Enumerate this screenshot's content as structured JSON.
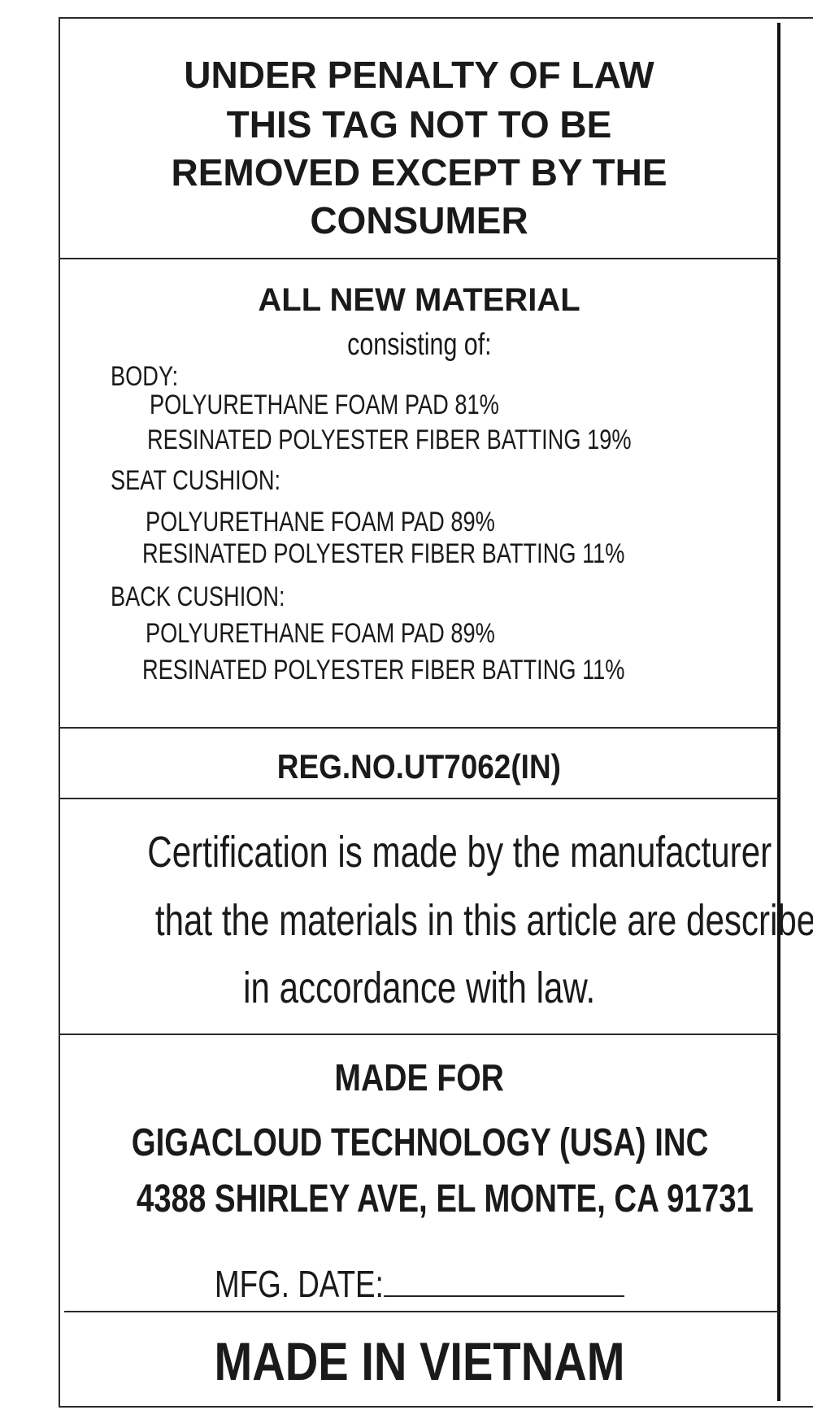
{
  "warning": {
    "lines": [
      "UNDER PENALTY OF LAW",
      "THIS TAG NOT TO BE",
      "REMOVED EXCEPT BY THE",
      "CONSUMER"
    ]
  },
  "material": {
    "heading": "ALL NEW MATERIAL",
    "subheading": "consisting of:",
    "sections": [
      {
        "label": "BODY:",
        "items": [
          "POLYURETHANE FOAM PAD 81%",
          "RESINATED POLYESTER FIBER BATTING 19%"
        ]
      },
      {
        "label": "SEAT CUSHION:",
        "items": [
          "POLYURETHANE FOAM PAD 89%",
          "RESINATED POLYESTER FIBER BATTING 11%"
        ]
      },
      {
        "label": "BACK CUSHION:",
        "items": [
          "POLYURETHANE FOAM PAD 89%",
          "RESINATED POLYESTER FIBER BATTING 11%"
        ]
      }
    ]
  },
  "registration": "REG.NO.UT7062(IN)",
  "certification": {
    "lines": [
      "Certification is made by the manufacturer",
      "that the materials in this article are described",
      "in accordance with law."
    ]
  },
  "made_for": {
    "heading": "MADE FOR",
    "company": "GIGACLOUD TECHNOLOGY (USA) INC",
    "address": "4388 SHIRLEY AVE, EL MONTE, CA 91731",
    "mfg_date_label": "MFG. DATE:",
    "mfg_date_value": ""
  },
  "origin": "MADE IN VIETNAM"
}
